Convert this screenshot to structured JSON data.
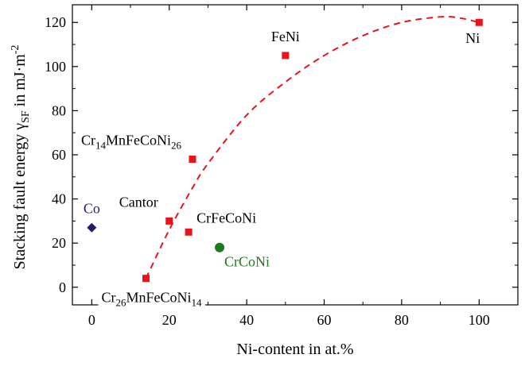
{
  "chart_data": {
    "type": "scatter",
    "xlabel": "Ni-content in at.%",
    "ylabel": "Stacking fault energy γSF in mJ·m⁻²",
    "ylabel_parts": {
      "main": "Stacking fault energy γ",
      "sub": "SF",
      "unit": " in mJ·m",
      "sup": "-2"
    },
    "xlim": [
      -5,
      110
    ],
    "ylim": [
      -8,
      128
    ],
    "xticks": [
      0,
      20,
      40,
      60,
      80,
      100
    ],
    "yticks": [
      0,
      20,
      40,
      60,
      80,
      100,
      120
    ],
    "grid": false,
    "points": [
      {
        "label": "FeNi",
        "label_parts": [
          {
            "t": "FeNi"
          }
        ],
        "x": 50,
        "y": 105,
        "marker": "square",
        "color": "#e8141c",
        "label_color": "#000000",
        "label_pos": "above",
        "label_bg": false
      },
      {
        "label": "Ni",
        "label_parts": [
          {
            "t": "Ni"
          }
        ],
        "x": 100,
        "y": 120,
        "marker": "square",
        "color": "#e8141c",
        "label_color": "#000000",
        "label_pos": "below-left",
        "label_bg": false
      },
      {
        "label": "Cr14MnFeCoNi26",
        "label_parts": [
          {
            "t": "Cr"
          },
          {
            "t": "14",
            "sub": true
          },
          {
            "t": "MnFeCoNi"
          },
          {
            "t": "26",
            "sub": true
          }
        ],
        "x": 26,
        "y": 58,
        "marker": "square",
        "color": "#e8141c",
        "label_color": "#000000",
        "label_pos": "upper-left",
        "label_bg": true
      },
      {
        "label": "Cantor",
        "label_parts": [
          {
            "t": "Cantor"
          }
        ],
        "x": 20,
        "y": 30,
        "marker": "square",
        "color": "#e8141c",
        "label_color": "#000000",
        "label_pos": "upper-left",
        "label_bg": false
      },
      {
        "label": "CrFeCoNi",
        "label_parts": [
          {
            "t": "CrFeCoNi"
          }
        ],
        "x": 25,
        "y": 25,
        "marker": "square",
        "color": "#e8141c",
        "label_color": "#000000",
        "label_pos": "upper-right",
        "label_bg": false
      },
      {
        "label": "Cr26MnFeCoNi14",
        "label_parts": [
          {
            "t": "Cr"
          },
          {
            "t": "26",
            "sub": true
          },
          {
            "t": "MnFeCoNi"
          },
          {
            "t": "14",
            "sub": true
          }
        ],
        "x": 14,
        "y": 4,
        "marker": "square",
        "color": "#e8141c",
        "label_color": "#000000",
        "label_pos": "below",
        "label_bg": true
      },
      {
        "label": "Co",
        "label_parts": [
          {
            "t": "Co"
          }
        ],
        "x": 0,
        "y": 27,
        "marker": "diamond",
        "color": "#2a1a6e",
        "label_color": "#2a1a6e",
        "label_pos": "above",
        "label_bg": false
      },
      {
        "label": "CrCoNi",
        "label_parts": [
          {
            "t": "CrCoNi"
          }
        ],
        "x": 33,
        "y": 18,
        "marker": "circle",
        "color": "#1e7a1e",
        "label_color": "#1e7a1e",
        "label_pos": "below-right",
        "label_bg": false
      }
    ],
    "trend": {
      "style": "dashed",
      "color": "#e8141c",
      "x": [
        14,
        20,
        26,
        30,
        40,
        50,
        60,
        70,
        80,
        90,
        95,
        100
      ],
      "y": [
        4,
        26,
        45,
        56,
        78,
        93,
        105,
        114,
        120,
        122.5,
        122,
        120
      ]
    }
  }
}
